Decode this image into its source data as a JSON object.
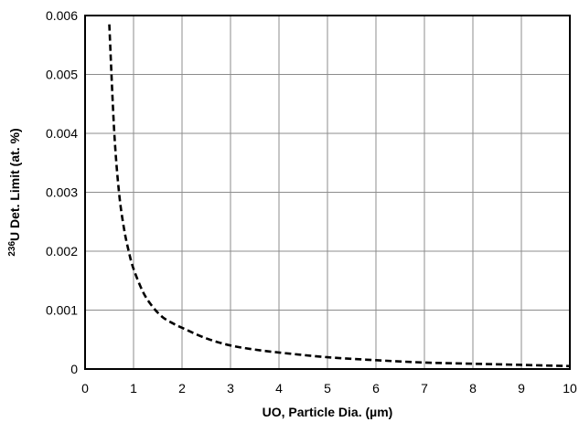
{
  "chart_data": {
    "type": "line",
    "title": "",
    "xlabel": "UO, Particle Dia. (µm)",
    "ylabel_sup": "236",
    "ylabel": "U Det. Limit (at. %)",
    "xlim": [
      0,
      10
    ],
    "ylim": [
      0,
      0.006
    ],
    "x_ticks": [
      0,
      1,
      2,
      3,
      4,
      5,
      6,
      7,
      8,
      9,
      10
    ],
    "x_tick_labels": [
      "0",
      "1",
      "2",
      "3",
      "4",
      "5",
      "6",
      "7",
      "8",
      "9",
      "10"
    ],
    "y_ticks": [
      0,
      0.001,
      0.002,
      0.003,
      0.004,
      0.005,
      0.006
    ],
    "y_tick_labels": [
      "0",
      "0.001",
      "0.002",
      "0.003",
      "0.004",
      "0.005",
      "0.006"
    ],
    "grid": true,
    "line_style": "dashed",
    "series": [
      {
        "color": "#000000",
        "x": [
          0.5,
          0.6,
          0.7,
          0.8,
          0.9,
          1.0,
          1.2,
          1.4,
          1.6,
          1.8,
          2.0,
          2.5,
          3.0,
          3.5,
          4.0,
          5.0,
          6.0,
          7.0,
          8.0,
          9.0,
          10.0
        ],
        "y": [
          0.00585,
          0.00405,
          0.003,
          0.0024,
          0.002,
          0.0017,
          0.0013,
          0.00105,
          0.00088,
          0.00078,
          0.0007,
          0.00052,
          0.0004,
          0.00033,
          0.00028,
          0.0002,
          0.00015,
          0.00011,
          9e-05,
          7e-05,
          5e-05
        ]
      }
    ]
  }
}
